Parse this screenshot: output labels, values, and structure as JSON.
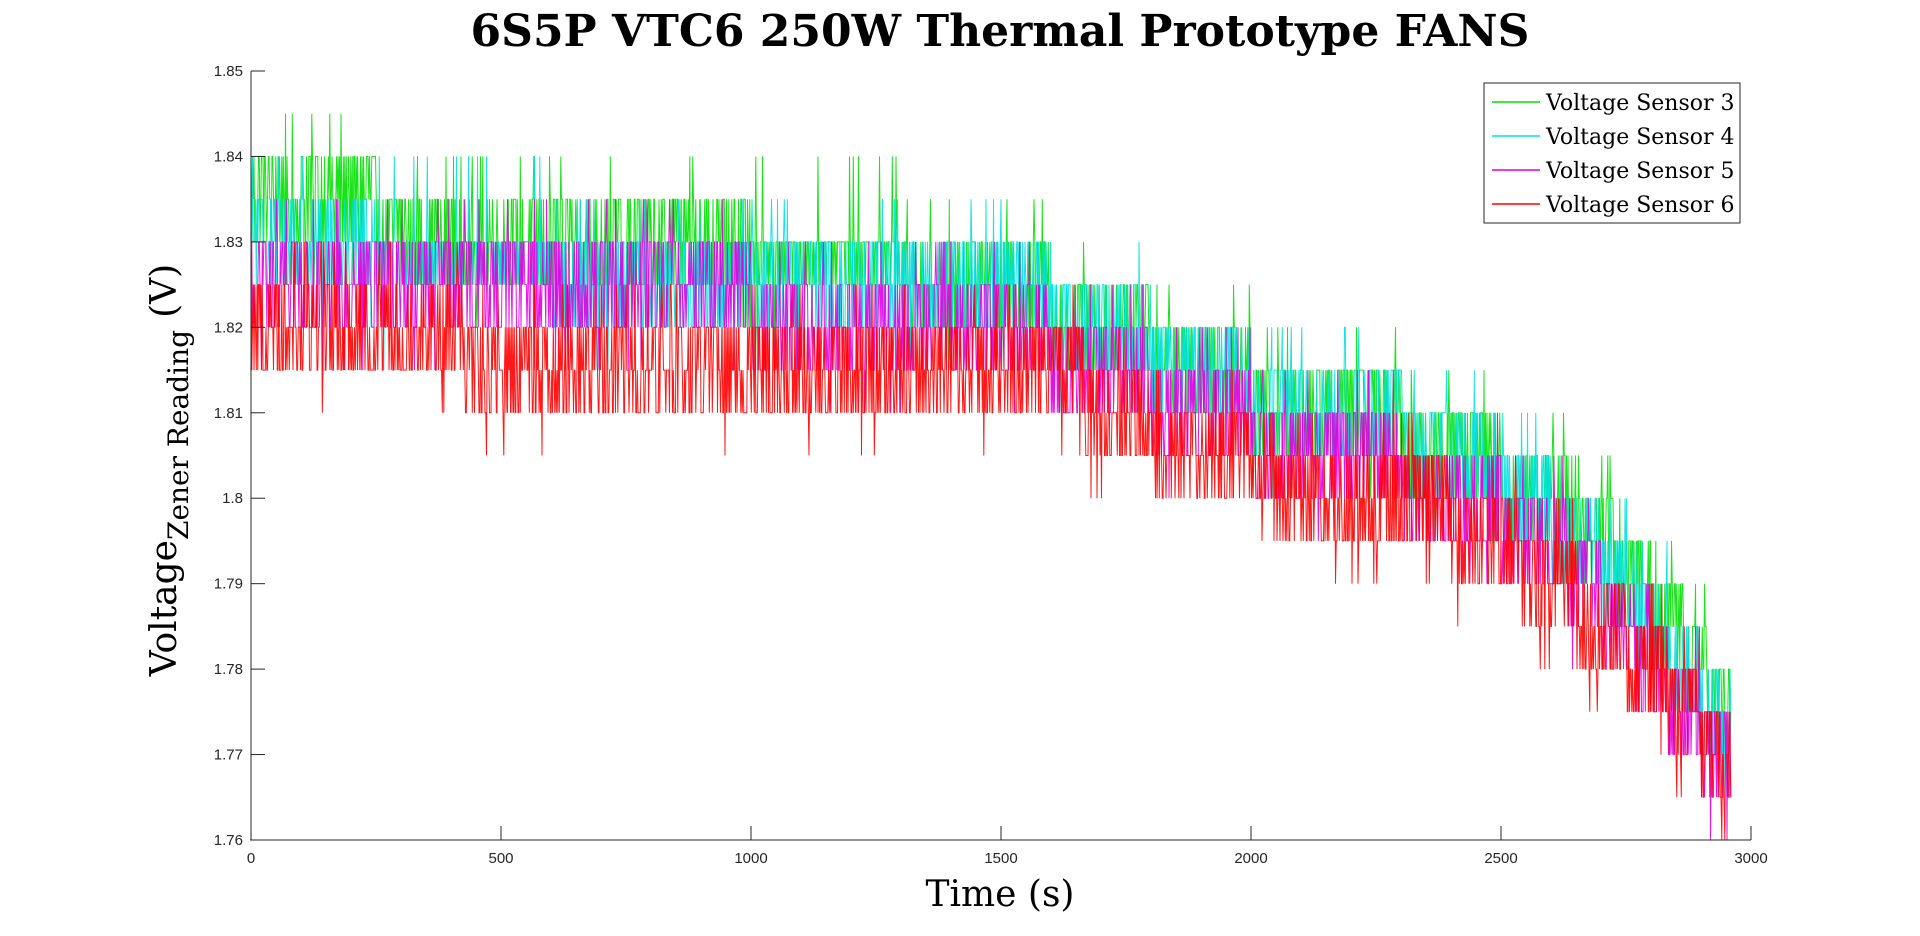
{
  "chart_data": {
    "type": "line",
    "title": "6S5P VTC6 250W Thermal Prototype FANS",
    "xlabel": "Time (s)",
    "ylabel": {
      "main": "Voltage",
      "subscript": "Zener Reading",
      "unit": "(V)"
    },
    "xlim": [
      0,
      3000
    ],
    "ylim": [
      1.76,
      1.85
    ],
    "x_ticks": [
      0,
      500,
      1000,
      1500,
      2000,
      2500,
      3000
    ],
    "y_ticks": [
      1.76,
      1.77,
      1.78,
      1.79,
      1.8,
      1.81,
      1.82,
      1.83,
      1.84,
      1.85
    ],
    "x_tick_labels": [
      "0",
      "500",
      "1000",
      "1500",
      "2000",
      "2500",
      "3000"
    ],
    "y_tick_labels": [
      "1.76",
      "1.77",
      "1.78",
      "1.79",
      "1.8",
      "1.81",
      "1.82",
      "1.83",
      "1.84",
      "1.85"
    ],
    "grid": false,
    "legend_position": "top-right",
    "quantization_step": 0.005,
    "series": [
      {
        "name": "Voltage Sensor 3",
        "color": "#00e000",
        "points": [
          [
            0,
            1.8325
          ],
          [
            250,
            1.8325
          ],
          [
            600,
            1.83
          ],
          [
            1000,
            1.8275
          ],
          [
            1300,
            1.8275
          ],
          [
            1600,
            1.8225
          ],
          [
            1800,
            1.8175
          ],
          [
            2000,
            1.8125
          ],
          [
            2200,
            1.81
          ],
          [
            2400,
            1.805
          ],
          [
            2600,
            1.8
          ],
          [
            2700,
            1.795
          ],
          [
            2800,
            1.7875
          ],
          [
            2900,
            1.78
          ],
          [
            2960,
            1.7725
          ]
        ]
      },
      {
        "name": "Voltage Sensor 4",
        "color": "#00e0e0",
        "points": [
          [
            0,
            1.83
          ],
          [
            250,
            1.8275
          ],
          [
            600,
            1.8275
          ],
          [
            1000,
            1.825
          ],
          [
            1300,
            1.825
          ],
          [
            1600,
            1.8225
          ],
          [
            1800,
            1.8175
          ],
          [
            2000,
            1.8125
          ],
          [
            2200,
            1.81
          ],
          [
            2400,
            1.805
          ],
          [
            2600,
            1.7975
          ],
          [
            2700,
            1.7925
          ],
          [
            2800,
            1.785
          ],
          [
            2900,
            1.7775
          ],
          [
            2960,
            1.77
          ]
        ]
      },
      {
        "name": "Voltage Sensor 5",
        "color": "#e000e0",
        "points": [
          [
            0,
            1.8275
          ],
          [
            250,
            1.825
          ],
          [
            600,
            1.8225
          ],
          [
            1000,
            1.8225
          ],
          [
            1300,
            1.82
          ],
          [
            1600,
            1.8175
          ],
          [
            1800,
            1.8125
          ],
          [
            2000,
            1.8075
          ],
          [
            2200,
            1.805
          ],
          [
            2400,
            1.8
          ],
          [
            2600,
            1.795
          ],
          [
            2700,
            1.7875
          ],
          [
            2800,
            1.78
          ],
          [
            2900,
            1.7725
          ],
          [
            2960,
            1.7675
          ]
        ]
      },
      {
        "name": "Voltage Sensor 6",
        "color": "#ff0000",
        "points": [
          [
            0,
            1.8225
          ],
          [
            250,
            1.82
          ],
          [
            600,
            1.815
          ],
          [
            1000,
            1.815
          ],
          [
            1300,
            1.815
          ],
          [
            1600,
            1.815
          ],
          [
            1800,
            1.8075
          ],
          [
            2000,
            1.8025
          ],
          [
            2200,
            1.8
          ],
          [
            2400,
            1.7975
          ],
          [
            2600,
            1.79
          ],
          [
            2700,
            1.785
          ],
          [
            2800,
            1.78
          ],
          [
            2900,
            1.7725
          ],
          [
            2960,
            1.765
          ]
        ]
      }
    ]
  }
}
